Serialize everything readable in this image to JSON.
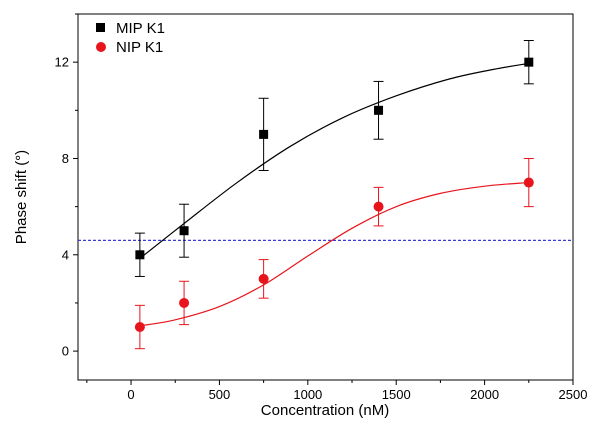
{
  "chart_data": {
    "type": "scatter",
    "xlabel": "Concentration (nM)",
    "ylabel": "Phase shift (°)",
    "xlim": [
      -300,
      2500
    ],
    "ylim": [
      -1.2,
      14
    ],
    "x_ticks": [
      0,
      500,
      1000,
      1500,
      2000,
      2500
    ],
    "y_ticks": [
      0,
      4,
      8,
      12
    ],
    "legend_position": "top-left",
    "reference_line": {
      "y": 4.6,
      "style": "dashed",
      "color": "#3b3bd6"
    },
    "series": [
      {
        "name": "MIP K1",
        "marker": "square",
        "color": "#000000",
        "x": [
          50,
          300,
          750,
          1400,
          2250
        ],
        "y": [
          4.0,
          5.0,
          9.0,
          10.0,
          12.0
        ],
        "error": [
          0.9,
          1.1,
          1.5,
          1.2,
          0.9
        ],
        "fit": [
          [
            50,
            3.85
          ],
          [
            300,
            5.3
          ],
          [
            600,
            7.0
          ],
          [
            900,
            8.5
          ],
          [
            1200,
            9.7
          ],
          [
            1500,
            10.6
          ],
          [
            1800,
            11.3
          ],
          [
            2050,
            11.7
          ],
          [
            2250,
            11.95
          ]
        ]
      },
      {
        "name": "NIP K1",
        "marker": "circle",
        "color": "#e8141c",
        "x": [
          50,
          300,
          750,
          1400,
          2250
        ],
        "y": [
          1.0,
          2.0,
          3.0,
          6.0,
          7.0
        ],
        "error": [
          0.9,
          0.9,
          0.8,
          0.8,
          1.0
        ],
        "fit": [
          [
            50,
            1.05
          ],
          [
            250,
            1.3
          ],
          [
            500,
            1.85
          ],
          [
            750,
            2.75
          ],
          [
            1000,
            3.95
          ],
          [
            1250,
            5.1
          ],
          [
            1500,
            6.0
          ],
          [
            1750,
            6.55
          ],
          [
            2000,
            6.85
          ],
          [
            2250,
            7.0
          ]
        ]
      }
    ]
  }
}
